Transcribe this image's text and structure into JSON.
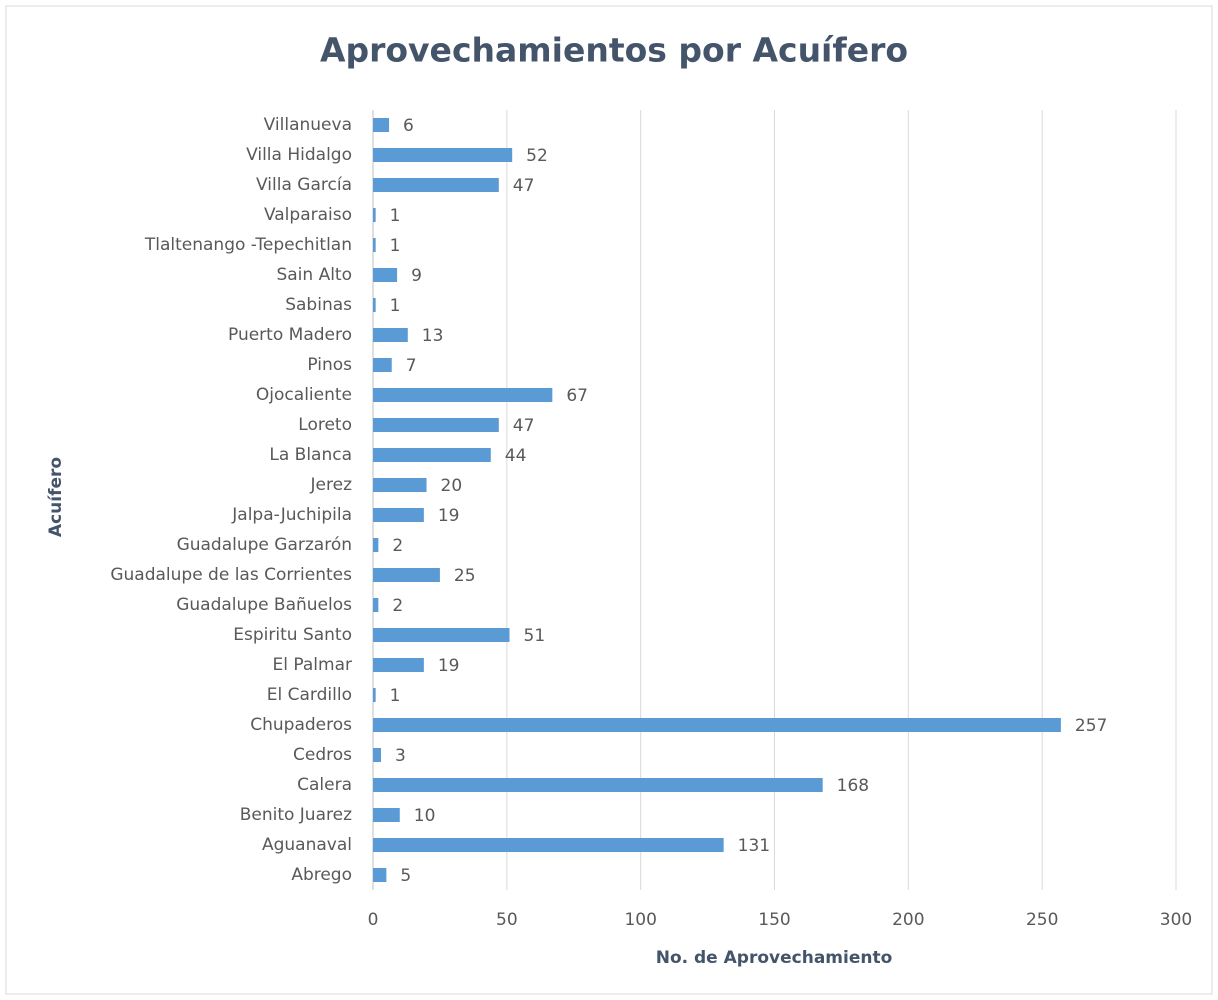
{
  "chart_data": {
    "type": "bar",
    "orientation": "horizontal",
    "title": "Aprovechamientos por Acuífero",
    "x_label": "No. de Aprovechamiento",
    "y_label": "Acuífero",
    "categories": [
      "Villanueva",
      "Villa Hidalgo",
      "Villa García",
      "Valparaiso",
      "Tlaltenango -Tepechitlan",
      "Sain Alto",
      "Sabinas",
      "Puerto Madero",
      "Pinos",
      "Ojocaliente",
      "Loreto",
      "La Blanca",
      "Jerez",
      "Jalpa-Juchipila",
      "Guadalupe Garzarón",
      "Guadalupe de las Corrientes",
      "Guadalupe Bañuelos",
      "Espiritu Santo",
      "El Palmar",
      "El Cardillo",
      "Chupaderos",
      "Cedros",
      "Calera",
      "Benito Juarez",
      "Aguanaval",
      "Abrego"
    ],
    "values": [
      6,
      52,
      47,
      1,
      1,
      9,
      1,
      13,
      7,
      67,
      47,
      44,
      20,
      19,
      2,
      25,
      2,
      51,
      19,
      1,
      257,
      3,
      168,
      10,
      131,
      5
    ],
    "color": "#5b9bd5",
    "xlim": [
      0,
      300
    ],
    "xticks": [
      0,
      50,
      100,
      150,
      200,
      250,
      300
    ],
    "grid": true
  }
}
